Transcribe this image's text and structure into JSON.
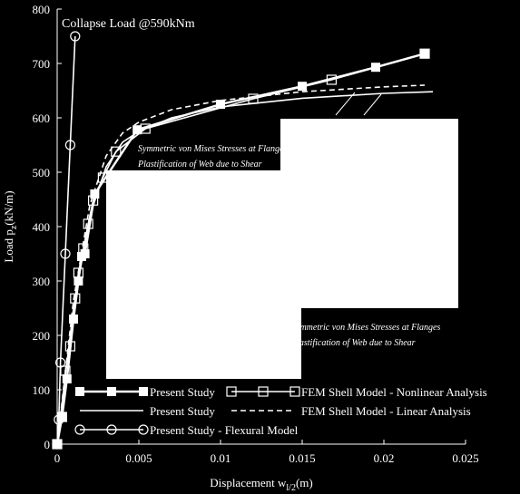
{
  "chart_data": {
    "type": "line",
    "title": "",
    "xlabel": "Displacement w",
    "xlabel_sub": "l/2",
    "xlabel_unit": "(m)",
    "ylabel": "Load p",
    "ylabel_sub": "z",
    "ylabel_unit": "(kN/m)",
    "xlim": [
      0,
      0.025
    ],
    "ylim": [
      0,
      800
    ],
    "xticks": [
      0,
      0.005,
      0.01,
      0.015,
      0.02,
      0.025
    ],
    "xtick_labels": [
      "0",
      "0.005",
      "0.01",
      "0.015",
      "0.02",
      "0.025"
    ],
    "yticks": [
      0,
      100,
      200,
      300,
      400,
      500,
      600,
      700,
      800
    ],
    "ytick_labels": [
      "0",
      "100",
      "200",
      "300",
      "400",
      "500",
      "600",
      "700",
      "800"
    ],
    "series": [
      {
        "name": "Present Study",
        "style": "solid-filled-square",
        "x": [
          0,
          0.0003,
          0.0006,
          0.001,
          0.0013,
          0.0015,
          0.0017,
          0.0023,
          0.0049,
          0.01,
          0.015,
          0.0195,
          0.0225
        ],
        "y": [
          0,
          50,
          120,
          230,
          300,
          345,
          350,
          460,
          578,
          625,
          658,
          693,
          718
        ]
      },
      {
        "name": "FEM Shell Model - Nonlinear Analysis",
        "style": "solid-open-square",
        "x": [
          0,
          0.0003,
          0.0005,
          0.0008,
          0.0011,
          0.0013,
          0.0016,
          0.0019,
          0.0022,
          0.0028,
          0.0036,
          0.0054,
          0.012,
          0.0168,
          0.0225
        ],
        "y": [
          0,
          50,
          135,
          180,
          268,
          315,
          360,
          405,
          448,
          490,
          538,
          580,
          635,
          670,
          718
        ]
      },
      {
        "name": "Present Study",
        "style": "solid-plain",
        "x": [
          0,
          0.001,
          0.002,
          0.003,
          0.004,
          0.005,
          0.007,
          0.01,
          0.015,
          0.02,
          0.023
        ],
        "y": [
          0,
          250,
          420,
          510,
          555,
          575,
          600,
          620,
          636,
          645,
          648
        ]
      },
      {
        "name": "FEM Shell Model - Linear Analysis",
        "style": "dashed",
        "x": [
          0,
          0.001,
          0.002,
          0.003,
          0.004,
          0.005,
          0.007,
          0.01,
          0.015,
          0.02,
          0.0225
        ],
        "y": [
          0,
          265,
          440,
          530,
          572,
          592,
          615,
          632,
          648,
          657,
          660
        ]
      },
      {
        "name": "Present Study - Flexural Model",
        "style": "solid-open-circle",
        "x": [
          0,
          0.0001,
          0.0002,
          0.0005,
          0.0008,
          0.0011
        ],
        "y": [
          0,
          45,
          150,
          350,
          550,
          750
        ]
      }
    ],
    "annotations": {
      "collapse": "Collapse Load @590kNm",
      "box1_line1": "Symmetric von Mises Stresses at Flanges",
      "box1_line2": "Plastification of Web due to Shear",
      "box2_line1": "Symmetric von Mises Stresses at Flanges",
      "box2_line2": "Plastification of Web due to Shear"
    },
    "legend": {
      "placement": "bottom-right",
      "rows": [
        {
          "items": [
            {
              "label": "Present Study",
              "series": 0
            },
            {
              "label": "FEM Shell Model - Nonlinear Analysis",
              "series": 1
            }
          ]
        },
        {
          "items": [
            {
              "label": "Present Study",
              "series": 2
            },
            {
              "label": "FEM Shell Model - Linear Analysis",
              "series": 3
            }
          ]
        },
        {
          "items": [
            {
              "label": "Present Study - Flexural Model",
              "series": 4
            }
          ]
        }
      ]
    }
  }
}
